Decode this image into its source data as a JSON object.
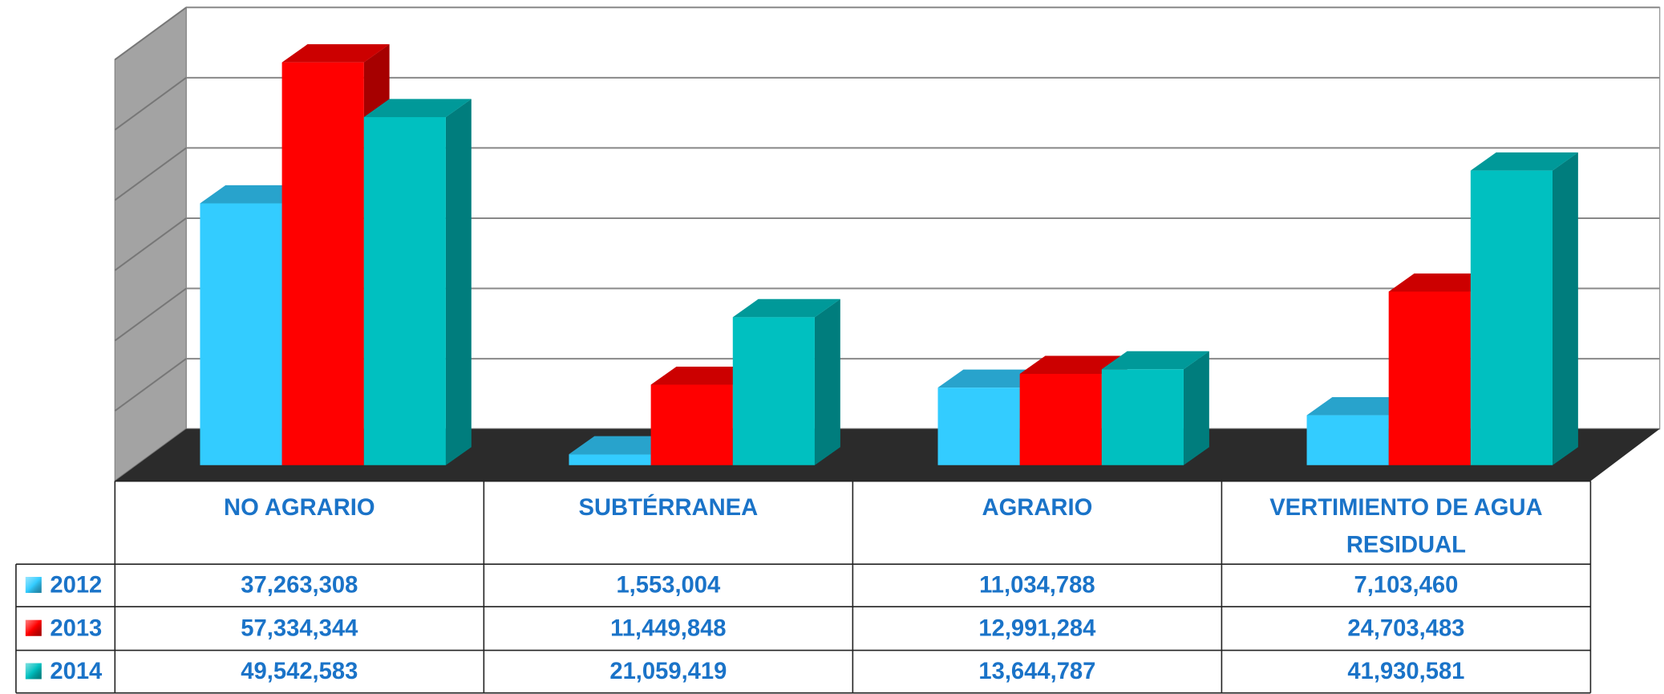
{
  "chart_data": {
    "type": "bar",
    "categories": [
      "NO AGRARIO",
      "SUBTÉRRANEA",
      "AGRARIO",
      "VERTIMIENTO DE AGUA RESIDUAL"
    ],
    "series": [
      {
        "name": "2012",
        "color": "#33ccff",
        "values": [
          37263308,
          1553004,
          11034788,
          7103460
        ],
        "value_labels": [
          "37,263,308",
          "1,553,004",
          "11,034,788",
          "7,103,460"
        ]
      },
      {
        "name": "2013",
        "color": "#ff0000",
        "values": [
          57334344,
          11449848,
          12991284,
          24703483
        ],
        "value_labels": [
          "57,334,344",
          "11,449,848",
          "12,991,284",
          "24,703,483"
        ]
      },
      {
        "name": "2014",
        "color": "#00c0c0",
        "values": [
          49542583,
          21059419,
          13644787,
          41930581
        ],
        "value_labels": [
          "49,542,583",
          "21,059,419",
          "13,644,787",
          "41,930,581"
        ]
      }
    ],
    "ylim": [
      0,
      60000000
    ],
    "yticks": [
      0,
      10000000,
      20000000,
      30000000,
      40000000,
      50000000,
      60000000
    ],
    "grid": true
  }
}
